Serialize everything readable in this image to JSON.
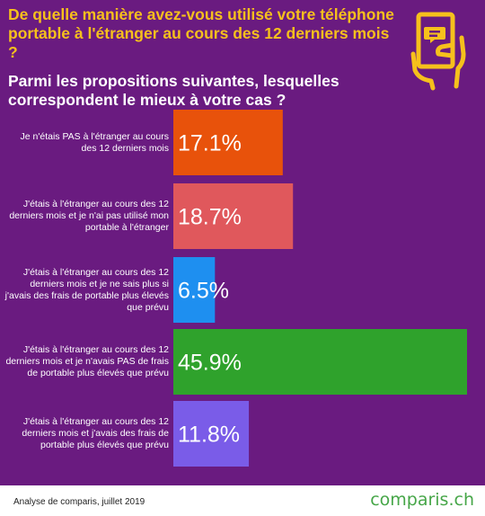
{
  "header": {
    "question_main": "De quelle manière avez-vous utilisé votre téléphone portable à l'étranger au cours des 12 derniers mois ?",
    "question_sub": "Parmi les propositions suivantes, lesquelles correspondent le mieux à votre cas ?"
  },
  "colors": {
    "background": "#6a1b80",
    "title": "#f6c01c",
    "icon": "#f6c01c"
  },
  "icon": "hand-holding-phone-chat-icon",
  "chart_data": {
    "type": "bar",
    "orientation": "horizontal",
    "categories": [
      "Je n'étais PAS à l'étranger au cours des 12 derniers mois",
      "J'étais à l'étranger au cours des 12 derniers mois et je n'ai pas utilisé mon portable à l'étranger",
      "J'étais à l'étranger au cours des 12 derniers mois et je ne sais plus si j'avais des frais de portable plus élevés que prévu",
      "J'étais à l'étranger au cours des 12 derniers mois et je n'avais PAS de frais de portable plus élevés que prévu",
      "J'étais à l'étranger au cours des 12 derniers mois et j'avais des frais de portable plus élevés que prévu"
    ],
    "values": [
      17.1,
      18.7,
      6.5,
      45.9,
      11.8
    ],
    "value_labels": [
      "17.1%",
      "18.7%",
      "6.5%",
      "45.9%",
      "11.8%"
    ],
    "bar_colors": [
      "#e8520b",
      "#e0585c",
      "#1e8ff0",
      "#2fa22c",
      "#7a5ce8"
    ],
    "xlim": [
      0,
      45.9
    ],
    "grid": false,
    "legend": "none"
  },
  "footer": {
    "source": "Analyse de comparis, juillet 2019",
    "brand": "comparis.ch"
  }
}
